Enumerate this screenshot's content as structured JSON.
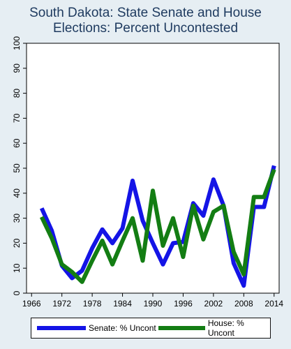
{
  "chart_data": {
    "type": "line",
    "title": "South Dakota: State Senate and House",
    "subtitle": "Elections: Percent Uncontested",
    "xlabel": "",
    "ylabel": "",
    "xlim": [
      1965,
      2015
    ],
    "ylim": [
      0,
      100
    ],
    "x_ticks": [
      1966,
      1972,
      1978,
      1984,
      1990,
      1996,
      2002,
      2008,
      2014
    ],
    "y_ticks": [
      0,
      10,
      20,
      30,
      40,
      50,
      60,
      70,
      80,
      90,
      100
    ],
    "x": [
      1968,
      1970,
      1972,
      1974,
      1976,
      1978,
      1980,
      1982,
      1984,
      1986,
      1988,
      1990,
      1992,
      1994,
      1996,
      1998,
      2000,
      2002,
      2004,
      2006,
      2008,
      2010,
      2012,
      2014
    ],
    "series": [
      {
        "name": "Senate: % Uncont",
        "color": "#1414e6",
        "values": [
          34,
          25,
          11,
          6,
          9,
          18,
          25.5,
          20,
          26,
          45,
          29,
          20,
          11.5,
          20,
          20.5,
          36,
          31,
          45.5,
          35,
          12,
          3,
          34.5,
          34.5,
          51
        ]
      },
      {
        "name": "House: % Uncont",
        "color": "#137d13",
        "values": [
          30.5,
          22,
          11.5,
          8.5,
          4.5,
          13,
          21,
          11.5,
          21,
          30,
          13,
          41,
          19,
          30,
          14.5,
          35,
          21.5,
          32.5,
          35,
          16.5,
          7.5,
          38.5,
          38.5,
          49.5
        ]
      }
    ],
    "grid": false,
    "legend_position": "bottom"
  },
  "legend": {
    "senate_label": "Senate: % Uncont",
    "house_label": "House: % Uncont"
  }
}
